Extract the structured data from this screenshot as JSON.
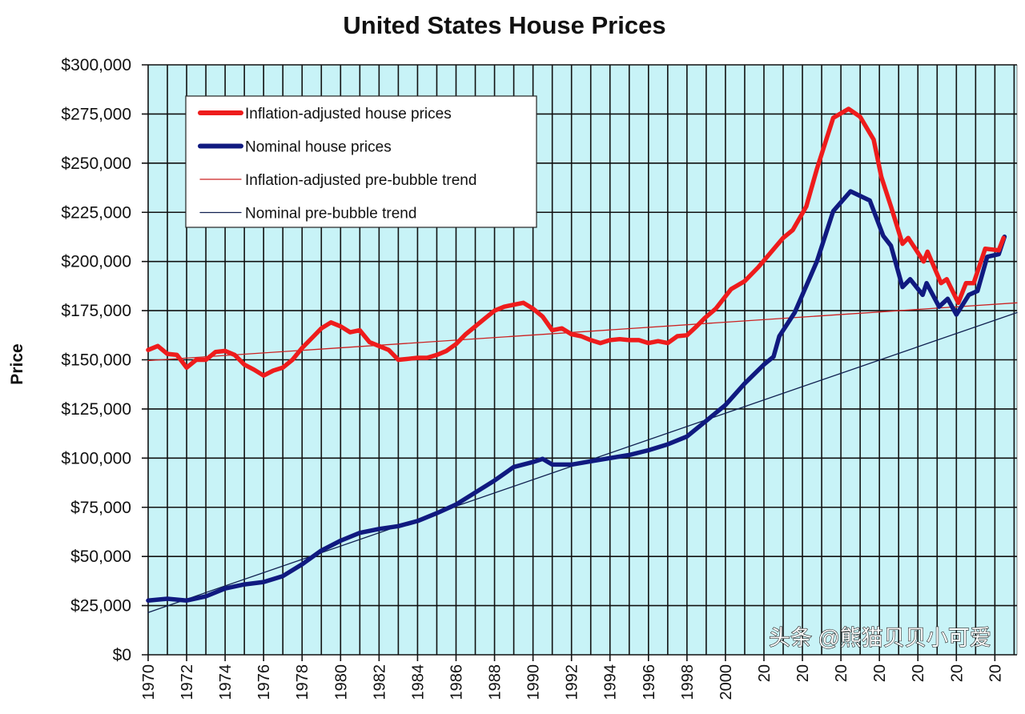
{
  "chart_data": {
    "type": "line",
    "title": "United States House Prices",
    "xlabel": "",
    "ylabel": "Price",
    "xlim": [
      1970,
      2015.15
    ],
    "ylim": [
      0,
      300000
    ],
    "grid": true,
    "legend_position": "top-left",
    "y_ticks": [
      "$0",
      "$25,000",
      "$50,000",
      "$75,000",
      "$100,000",
      "$125,000",
      "$150,000",
      "$175,000",
      "$200,000",
      "$225,000",
      "$250,000",
      "$275,000",
      "$300,000"
    ],
    "x_ticks": [
      "1970",
      "1972",
      "1974",
      "1976",
      "1978",
      "1980",
      "1982",
      "1984",
      "1986",
      "1988",
      "1990",
      "1992",
      "1994",
      "1996",
      "1998",
      "2000",
      "20",
      "20",
      "20",
      "20",
      "20",
      "20",
      "20"
    ],
    "series": [
      {
        "name": "Inflation-adjusted house prices",
        "color": "#ee1c1c",
        "style": "thick",
        "x": [
          1970,
          1970.5,
          1971,
          1971.5,
          1972,
          1972.5,
          1973,
          1973.5,
          1974,
          1974.5,
          1975,
          1975.5,
          1976,
          1976.5,
          1977,
          1977.5,
          1978,
          1978.5,
          1979,
          1979.5,
          1980,
          1980.5,
          1981,
          1981.5,
          1982,
          1982.5,
          1983,
          1983.5,
          1984,
          1984.5,
          1985,
          1985.5,
          1986,
          1986.5,
          1987,
          1987.5,
          1988,
          1988.5,
          1989,
          1989.5,
          1990,
          1990.5,
          1991,
          1991.5,
          1992,
          1992.5,
          1993,
          1993.5,
          1994,
          1994.5,
          1995,
          1995.5,
          1996,
          1996.5,
          1997,
          1997.5,
          1998,
          1998.5,
          1998.9,
          1999.5,
          2000.3,
          2001,
          2001.7,
          2003,
          2003.5,
          2004.2,
          2004.75,
          2005.6,
          2006.4,
          2007,
          2007.7,
          2008.1,
          2008.6,
          2009.2,
          2009.5,
          2010.3,
          2010.5,
          2011.2,
          2011.5,
          2012.1,
          2012.5,
          2012.9,
          2013.5,
          2014.2,
          2014.45
        ],
        "values": [
          155000,
          157000,
          153000,
          152500,
          146000,
          150000,
          150000,
          154000,
          154500,
          152500,
          147500,
          145000,
          142000,
          144500,
          146000,
          150000,
          156000,
          161000,
          166000,
          169000,
          167000,
          164000,
          165000,
          159000,
          157000,
          155000,
          150000,
          150500,
          151000,
          151000,
          152500,
          154500,
          158000,
          163000,
          167000,
          171000,
          175000,
          177000,
          178000,
          179000,
          176000,
          172000,
          165000,
          166000,
          163000,
          162000,
          160000,
          158500,
          160000,
          160500,
          160000,
          160000,
          158500,
          159500,
          158500,
          162000,
          162500,
          167000,
          171000,
          176000,
          186000,
          190000,
          197000,
          212000,
          216000,
          228000,
          247000,
          273000,
          277600,
          273600,
          262000,
          243000,
          228000,
          209000,
          212000,
          200000,
          205000,
          189000,
          191000,
          179000,
          189000,
          189000,
          206500,
          205700,
          212000
        ]
      },
      {
        "name": "Nominal house prices",
        "color": "#101a80",
        "style": "thick",
        "x": [
          1970,
          1971,
          1972,
          1973,
          1974,
          1975,
          1976,
          1977,
          1978,
          1979,
          1980,
          1981,
          1982,
          1983,
          1984,
          1985,
          1986,
          1987,
          1988,
          1989,
          1990,
          1990.5,
          1991,
          1992,
          1993,
          1994,
          1995,
          1996,
          1997,
          1998,
          1999,
          2000,
          2001,
          2002,
          2002.5,
          2002.8,
          2003.6,
          2004.75,
          2005.6,
          2006.5,
          2007.5,
          2008.2,
          2008.6,
          2009.2,
          2009.6,
          2010.25,
          2010.45,
          2011.1,
          2011.55,
          2012,
          2012.65,
          2013.1,
          2013.6,
          2014.2,
          2014.5
        ],
        "values": [
          27600,
          28500,
          27600,
          29700,
          33700,
          35800,
          37000,
          40000,
          46000,
          53000,
          58000,
          62000,
          64000,
          65400,
          68000,
          72000,
          76400,
          82500,
          88600,
          95500,
          98000,
          99600,
          96700,
          96700,
          98400,
          100000,
          101600,
          104000,
          107000,
          111000,
          119000,
          127000,
          138000,
          147600,
          151600,
          162000,
          174000,
          200000,
          225600,
          235700,
          231000,
          213000,
          208000,
          187000,
          191000,
          183000,
          189000,
          177000,
          181000,
          173000,
          183000,
          185000,
          202400,
          203700,
          212600
        ]
      },
      {
        "name": "Inflation-adjusted pre-bubble trend",
        "color": "#cc2222",
        "style": "thin",
        "x": [
          1970,
          2015.15
        ],
        "values": [
          149600,
          179000
        ]
      },
      {
        "name": "Nominal pre-bubble trend",
        "color": "#102050",
        "style": "thin",
        "x": [
          1970,
          2015.15
        ],
        "values": [
          21500,
          174000
        ]
      }
    ]
  },
  "watermark": "头条 @熊猫贝贝小可爱",
  "colors": {
    "plot_bg": "#c8f3f7",
    "grid": "#111111"
  }
}
